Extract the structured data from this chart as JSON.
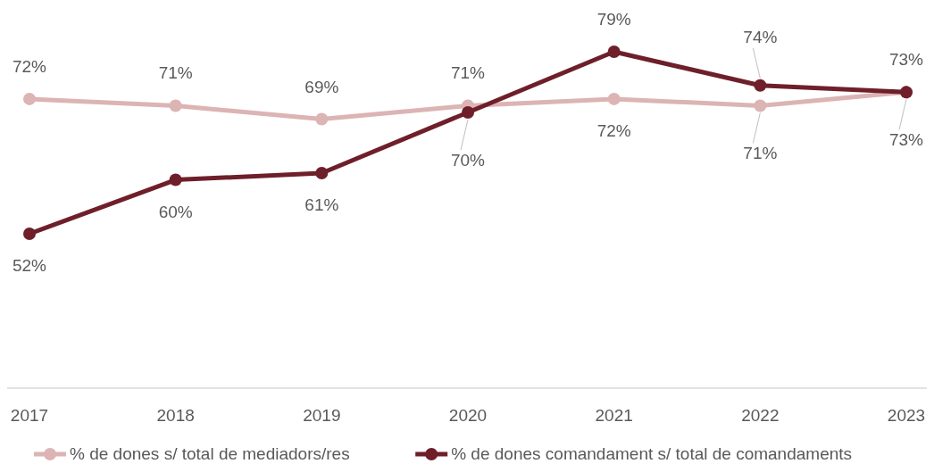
{
  "chart_data": {
    "type": "line",
    "categories": [
      "2017",
      "2018",
      "2019",
      "2020",
      "2021",
      "2022",
      "2023"
    ],
    "series": [
      {
        "name": "% de dones s/ total de mediadors/res",
        "color": "#dcb4b4",
        "values": [
          72,
          71,
          69,
          71,
          72,
          71,
          73
        ],
        "value_labels": [
          "72%",
          "71%",
          "69%",
          "71%",
          "72%",
          "71%",
          "73%"
        ]
      },
      {
        "name": "% de dones comandament s/ total de comandaments",
        "color": "#6e1f2a",
        "values": [
          52,
          60,
          61,
          70,
          79,
          74,
          73
        ],
        "value_labels": [
          "52%",
          "60%",
          "61%",
          "70%",
          "79%",
          "74%",
          "73%"
        ]
      }
    ],
    "legend": "bottom",
    "marker": "circle",
    "line_style": "solid"
  }
}
